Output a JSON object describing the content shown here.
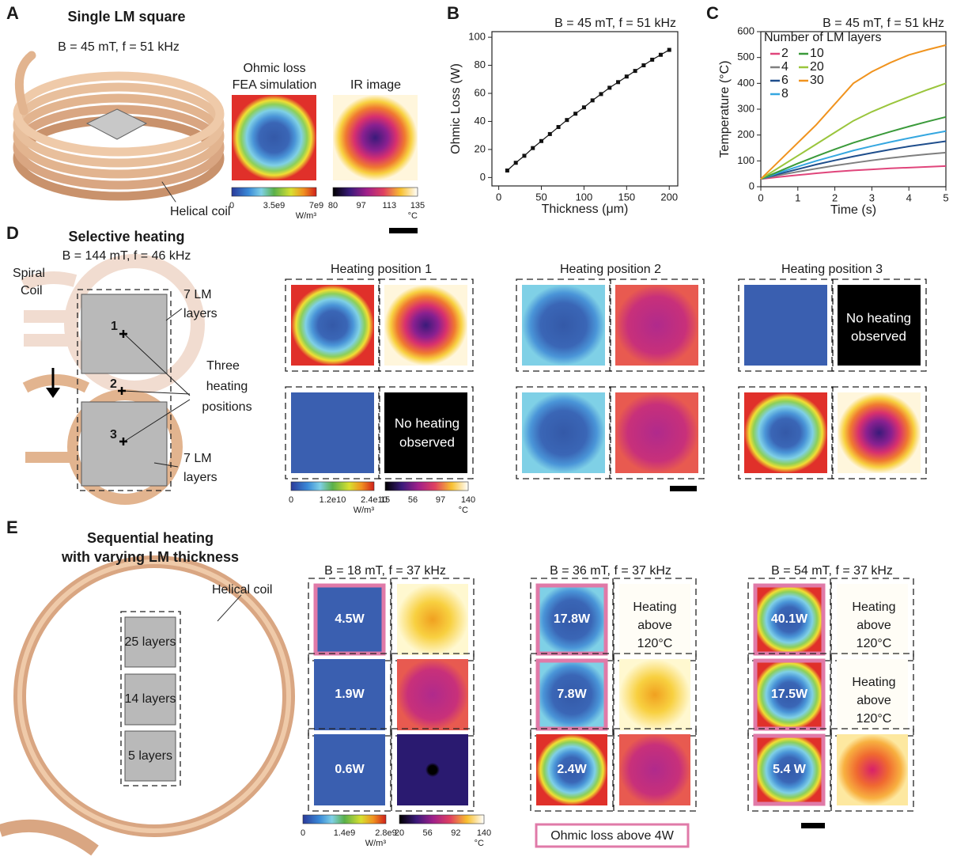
{
  "panel_a": {
    "label": "A",
    "title": "Single LM square",
    "condition": "B = 45 mT, f = 51 kHz",
    "fea_title": [
      "Ohmic loss",
      "FEA simulation"
    ],
    "ir_title": "IR image",
    "coil_label": "Helical coil",
    "fea_colorbar": {
      "ticks": [
        "0",
        "3.5e9",
        "7e9"
      ],
      "unit": "W/m³"
    },
    "ir_colorbar": {
      "ticks": [
        "80",
        "97",
        "113",
        "135"
      ],
      "unit": "°C"
    }
  },
  "chart_data": [
    {
      "type": "line",
      "panel_label": "B",
      "annotation": "B = 45 mT, f = 51 kHz",
      "xlabel": "Thickness (μm)",
      "ylabel": "Ohmic Loss (W)",
      "color": "#111111",
      "x": [
        10,
        20,
        30,
        40,
        50,
        60,
        70,
        80,
        90,
        100,
        110,
        120,
        130,
        140,
        150,
        160,
        170,
        180,
        190,
        200
      ],
      "values": [
        5,
        10.5,
        15.5,
        21,
        26,
        31,
        36,
        41,
        45.5,
        50,
        55,
        59.5,
        64,
        68,
        72,
        76,
        80,
        84,
        87.5,
        91
      ],
      "xlim": [
        -8,
        210
      ],
      "ylim": [
        -6,
        104
      ],
      "xticks": [
        0,
        50,
        100,
        150,
        200
      ],
      "yticks": [
        0,
        20,
        40,
        60,
        80,
        100
      ]
    },
    {
      "type": "line",
      "panel_label": "C",
      "annotation": "B = 45 mT, f = 51 kHz",
      "xlabel": "Time (s)",
      "ylabel": "Temperature (°C)",
      "legend_title": "Number of LM layers",
      "x": [
        0,
        0.5,
        1,
        1.5,
        2,
        2.5,
        3,
        3.5,
        4,
        4.5,
        5
      ],
      "series": [
        {
          "name": "2",
          "color": "#e0457b",
          "values": [
            30,
            38,
            45,
            52,
            58,
            63,
            67,
            71,
            74,
            77,
            80
          ]
        },
        {
          "name": "4",
          "color": "#7f7f7f",
          "values": [
            30,
            45,
            58,
            70,
            82,
            92,
            102,
            111,
            119,
            126,
            132
          ]
        },
        {
          "name": "6",
          "color": "#1f4e8c",
          "values": [
            30,
            50,
            68,
            86,
            102,
            117,
            131,
            144,
            156,
            166,
            176
          ]
        },
        {
          "name": "8",
          "color": "#35a7e0",
          "values": [
            30,
            55,
            78,
            100,
            120,
            140,
            157,
            173,
            188,
            202,
            215
          ]
        },
        {
          "name": "10",
          "color": "#3a9a3a",
          "values": [
            30,
            60,
            90,
            118,
            145,
            170,
            192,
            213,
            233,
            252,
            270
          ]
        },
        {
          "name": "20",
          "color": "#9ac53c",
          "values": [
            30,
            75,
            120,
            165,
            210,
            255,
            290,
            320,
            348,
            375,
            400
          ]
        },
        {
          "name": "30",
          "color": "#f0931e",
          "values": [
            30,
            100,
            170,
            240,
            320,
            400,
            445,
            480,
            510,
            530,
            548
          ]
        }
      ],
      "xlim": [
        0,
        5
      ],
      "ylim": [
        0,
        600
      ],
      "xticks": [
        0,
        1,
        2,
        3,
        4,
        5
      ],
      "yticks": [
        0,
        100,
        200,
        300,
        400,
        500,
        600
      ]
    }
  ],
  "panel_d": {
    "label": "D",
    "title": "Selective heating",
    "condition": "B = 144 mT, f = 46 kHz",
    "coil_label": [
      "Spiral",
      "Coil"
    ],
    "top_layers": [
      "7 LM",
      "layers"
    ],
    "bottom_layers": [
      "7 LM",
      "layers"
    ],
    "positions": [
      "1",
      "2",
      "3"
    ],
    "positions_label": [
      "Three",
      "heating",
      "positions"
    ],
    "columns": [
      "Heating position 1",
      "Heating position 2",
      "Heating position 3"
    ],
    "no_heating_1": [
      "No heating",
      "observed"
    ],
    "no_heating_3": [
      "No heating",
      "observed"
    ],
    "fea_colorbar": {
      "ticks": [
        "0",
        "1.2e10",
        "2.4e10"
      ],
      "unit": "W/m³"
    },
    "ir_colorbar": {
      "ticks": [
        "15",
        "56",
        "97",
        "140"
      ],
      "unit": "°C"
    }
  },
  "panel_e": {
    "label": "E",
    "title": [
      "Sequential heating",
      "with varying LM thickness"
    ],
    "coil_label": "Helical coil",
    "layers": [
      "25 layers",
      "14 layers",
      "5 layers"
    ],
    "conditions": [
      {
        "title": "B = 18 mT, f = 37 kHz",
        "powers": [
          "4.5W",
          "1.9W",
          "0.6W"
        ]
      },
      {
        "title": "B = 36 mT, f = 37 kHz",
        "powers": [
          "17.8W",
          "7.8W",
          "2.4W"
        ],
        "ir_note": [
          "Heating",
          "above",
          "120°C"
        ]
      },
      {
        "title": "B = 54 mT, f = 37 kHz",
        "powers": [
          "40.1W",
          "17.5W",
          "5.4 W"
        ],
        "ir_notes": [
          [
            "Heating",
            "above",
            "120°C"
          ],
          [
            "Heating",
            "above",
            "120°C"
          ]
        ]
      }
    ],
    "fea_colorbar": {
      "ticks": [
        "0",
        "1.4e9",
        "2.8e9"
      ],
      "unit": "W/m³"
    },
    "ir_colorbar": {
      "ticks": [
        "20",
        "56",
        "92",
        "140"
      ],
      "unit": "°C"
    },
    "legend": "Ohmic loss above 4W"
  }
}
